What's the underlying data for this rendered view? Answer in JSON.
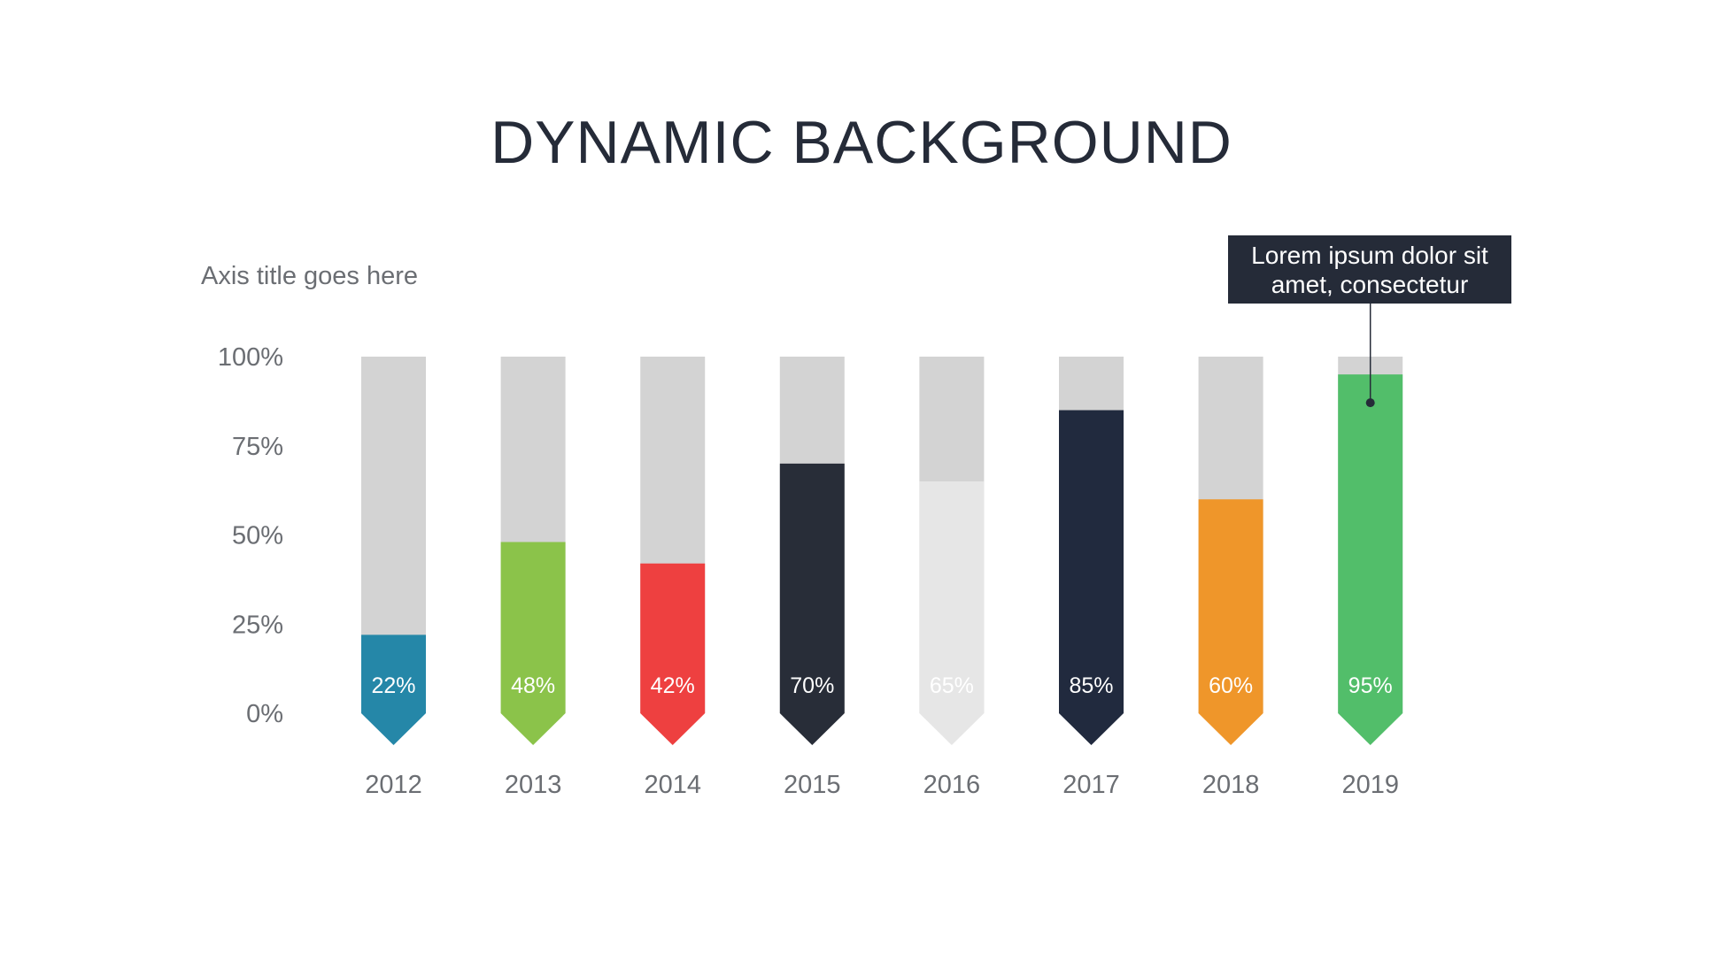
{
  "chart_data": {
    "type": "bar",
    "title": "DYNAMIC BACKGROUND",
    "ylabel": "Axis title goes here",
    "xlabel": "",
    "ylim": [
      0,
      100
    ],
    "yticks": [
      "0%",
      "25%",
      "50%",
      "75%",
      "100%"
    ],
    "categories": [
      "2012",
      "2013",
      "2014",
      "2015",
      "2016",
      "2017",
      "2018",
      "2019"
    ],
    "values": [
      22,
      48,
      42,
      70,
      65,
      85,
      60,
      95
    ],
    "value_labels": [
      "22%",
      "48%",
      "42%",
      "70%",
      "65%",
      "85%",
      "60%",
      "95%"
    ],
    "colors": [
      "#2587a8",
      "#8bc34a",
      "#ee4040",
      "#282d38",
      "#e6e6e6",
      "#212a3e",
      "#ef962a",
      "#52be6a"
    ],
    "background_color": "#d3d3d3",
    "grid": false,
    "legend": "none",
    "annotation": {
      "category": "2019",
      "line1": "Lorem ipsum dolor sit",
      "line2": "amet, consectetur"
    }
  }
}
